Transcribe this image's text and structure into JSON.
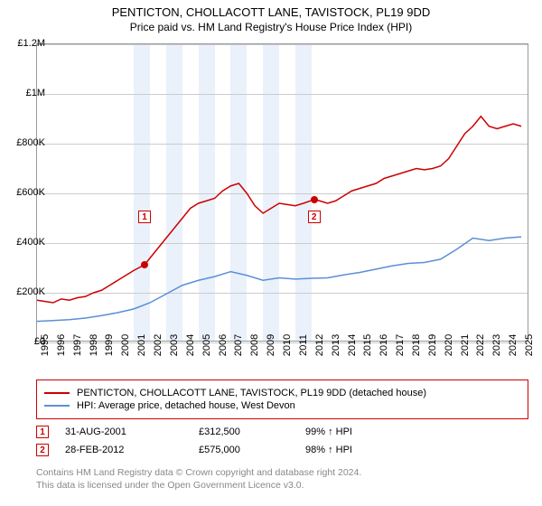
{
  "title": "PENTICTON, CHOLLACOTT LANE, TAVISTOCK, PL19 9DD",
  "subtitle": "Price paid vs. HM Land Registry's House Price Index (HPI)",
  "chart": {
    "type": "line",
    "background_color": "#ffffff",
    "grid_color": "#cccccc",
    "border_color": "#999999",
    "band_color": "#eaf1fb",
    "x_min": 1995,
    "x_max": 2025.5,
    "ylim": [
      0,
      1200000
    ],
    "ytick_step": 200000,
    "ytick_labels": [
      "£0",
      "£200K",
      "£400K",
      "£600K",
      "£800K",
      "£1M",
      "£1.2M"
    ],
    "xticks": [
      1995,
      1996,
      1997,
      1998,
      1999,
      2000,
      2001,
      2002,
      2003,
      2004,
      2005,
      2006,
      2007,
      2008,
      2009,
      2010,
      2011,
      2012,
      2013,
      2014,
      2015,
      2016,
      2017,
      2018,
      2019,
      2020,
      2021,
      2022,
      2023,
      2024,
      2025
    ],
    "bands": [
      [
        2001,
        2002
      ],
      [
        2003,
        2004
      ],
      [
        2005,
        2006
      ],
      [
        2007,
        2008
      ],
      [
        2009,
        2010
      ],
      [
        2011,
        2012
      ]
    ],
    "series": [
      {
        "name": "PENTICTON, CHOLLACOTT LANE, TAVISTOCK, PL19 9DD (detached house)",
        "color": "#cc0000",
        "width": 1.5,
        "data": [
          [
            1995,
            170000
          ],
          [
            1995.5,
            165000
          ],
          [
            1996,
            160000
          ],
          [
            1996.5,
            175000
          ],
          [
            1997,
            170000
          ],
          [
            1997.5,
            180000
          ],
          [
            1998,
            185000
          ],
          [
            1998.5,
            200000
          ],
          [
            1999,
            210000
          ],
          [
            1999.5,
            230000
          ],
          [
            2000,
            250000
          ],
          [
            2000.5,
            270000
          ],
          [
            2001,
            290000
          ],
          [
            2001.66,
            312500
          ],
          [
            2002,
            340000
          ],
          [
            2002.5,
            380000
          ],
          [
            2003,
            420000
          ],
          [
            2003.5,
            460000
          ],
          [
            2004,
            500000
          ],
          [
            2004.5,
            540000
          ],
          [
            2005,
            560000
          ],
          [
            2005.5,
            570000
          ],
          [
            2006,
            580000
          ],
          [
            2006.5,
            610000
          ],
          [
            2007,
            630000
          ],
          [
            2007.5,
            640000
          ],
          [
            2008,
            600000
          ],
          [
            2008.5,
            550000
          ],
          [
            2009,
            520000
          ],
          [
            2009.5,
            540000
          ],
          [
            2010,
            560000
          ],
          [
            2010.5,
            555000
          ],
          [
            2011,
            550000
          ],
          [
            2011.5,
            560000
          ],
          [
            2012.16,
            575000
          ],
          [
            2012.5,
            570000
          ],
          [
            2013,
            560000
          ],
          [
            2013.5,
            570000
          ],
          [
            2014,
            590000
          ],
          [
            2014.5,
            610000
          ],
          [
            2015,
            620000
          ],
          [
            2015.5,
            630000
          ],
          [
            2016,
            640000
          ],
          [
            2016.5,
            660000
          ],
          [
            2017,
            670000
          ],
          [
            2017.5,
            680000
          ],
          [
            2018,
            690000
          ],
          [
            2018.5,
            700000
          ],
          [
            2019,
            695000
          ],
          [
            2019.5,
            700000
          ],
          [
            2020,
            710000
          ],
          [
            2020.5,
            740000
          ],
          [
            2021,
            790000
          ],
          [
            2021.5,
            840000
          ],
          [
            2022,
            870000
          ],
          [
            2022.5,
            910000
          ],
          [
            2023,
            870000
          ],
          [
            2023.5,
            860000
          ],
          [
            2024,
            870000
          ],
          [
            2024.5,
            880000
          ],
          [
            2025,
            870000
          ]
        ]
      },
      {
        "name": "HPI: Average price, detached house, West Devon",
        "color": "#5b8fd6",
        "width": 1.5,
        "data": [
          [
            1995,
            85000
          ],
          [
            1996,
            88000
          ],
          [
            1997,
            92000
          ],
          [
            1998,
            98000
          ],
          [
            1999,
            108000
          ],
          [
            2000,
            120000
          ],
          [
            2001,
            135000
          ],
          [
            2002,
            160000
          ],
          [
            2003,
            195000
          ],
          [
            2004,
            230000
          ],
          [
            2005,
            250000
          ],
          [
            2006,
            265000
          ],
          [
            2007,
            285000
          ],
          [
            2008,
            270000
          ],
          [
            2009,
            250000
          ],
          [
            2010,
            260000
          ],
          [
            2011,
            255000
          ],
          [
            2012,
            258000
          ],
          [
            2013,
            260000
          ],
          [
            2014,
            272000
          ],
          [
            2015,
            282000
          ],
          [
            2016,
            295000
          ],
          [
            2017,
            308000
          ],
          [
            2018,
            318000
          ],
          [
            2019,
            322000
          ],
          [
            2020,
            335000
          ],
          [
            2021,
            375000
          ],
          [
            2022,
            420000
          ],
          [
            2023,
            410000
          ],
          [
            2024,
            420000
          ],
          [
            2025,
            425000
          ]
        ]
      }
    ],
    "markers": [
      {
        "n": "1",
        "x": 2001.66,
        "y": 312500,
        "box_y": 0.71
      },
      {
        "n": "2",
        "x": 2012.16,
        "y": 575000,
        "box_y": 0.71
      }
    ]
  },
  "legend": {
    "border_color": "#cc0000",
    "items": [
      {
        "color": "#cc0000",
        "label": "PENTICTON, CHOLLACOTT LANE, TAVISTOCK, PL19 9DD (detached house)"
      },
      {
        "color": "#5b8fd6",
        "label": "HPI: Average price, detached house, West Devon"
      }
    ]
  },
  "data_rows": [
    {
      "n": "1",
      "date": "31-AUG-2001",
      "price": "£312,500",
      "hpi": "99% ↑ HPI"
    },
    {
      "n": "2",
      "date": "28-FEB-2012",
      "price": "£575,000",
      "hpi": "98% ↑ HPI"
    }
  ],
  "footer_line1": "Contains HM Land Registry data © Crown copyright and database right 2024.",
  "footer_line2": "This data is licensed under the Open Government Licence v3.0.",
  "footer_color": "#888888"
}
